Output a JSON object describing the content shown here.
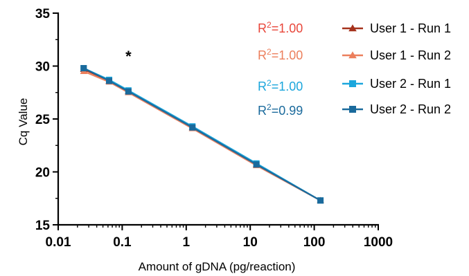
{
  "chart_data": {
    "type": "line",
    "xlabel": "Amount of gDNA (pg/reaction)",
    "ylabel": "Cq Value",
    "x_scale": "log",
    "xlim": [
      0.01,
      1000
    ],
    "ylim": [
      15,
      35
    ],
    "x_ticks": [
      "0.01",
      "0.1",
      "1",
      "10",
      "100",
      "1000"
    ],
    "y_ticks": [
      "15",
      "20",
      "25",
      "30",
      "35"
    ],
    "x": [
      0.025,
      0.0625,
      0.125,
      1.25,
      12.5,
      125
    ],
    "series": [
      {
        "name": "User 1 - Run 1",
        "color": "#a5321c",
        "marker": "triangle-up",
        "r2": "R²=1.00",
        "r2_base": "R",
        "r2_sup": "2",
        "r2_value": "=1.00",
        "r2_color": "#e8463a",
        "values": [
          29.7,
          28.6,
          27.6,
          24.2,
          20.7,
          17.3
        ]
      },
      {
        "name": "User 1 - Run 2",
        "color": "#ec7f5c",
        "marker": "triangle-up",
        "r2": "R²=1.00",
        "r2_base": "R",
        "r2_sup": "2",
        "r2_value": "=1.00",
        "r2_color": "#ec7f5c",
        "values": [
          29.5,
          28.5,
          27.5,
          24.1,
          20.6,
          17.3
        ]
      },
      {
        "name": "User 2 - Run 1",
        "color": "#1ba6dc",
        "marker": "square",
        "r2": "R²=1.00",
        "r2_base": "R",
        "r2_sup": "2",
        "r2_value": "=1.00",
        "r2_color": "#1ba6dc",
        "values": [
          29.8,
          28.7,
          27.7,
          24.3,
          20.8,
          17.3
        ]
      },
      {
        "name": "User 2 - Run 2",
        "color": "#1a6a9c",
        "marker": "square",
        "r2": "R²=0.99",
        "r2_base": "R",
        "r2_sup": "2",
        "r2_value": "=0.99",
        "r2_color": "#1a6a9c",
        "values": [
          29.8,
          28.6,
          27.6,
          24.2,
          20.7,
          17.3
        ]
      }
    ],
    "annotations": [
      {
        "text": "*",
        "x": 0.125,
        "y": 31.2
      }
    ],
    "grid": false,
    "legend_position": "top-right"
  }
}
